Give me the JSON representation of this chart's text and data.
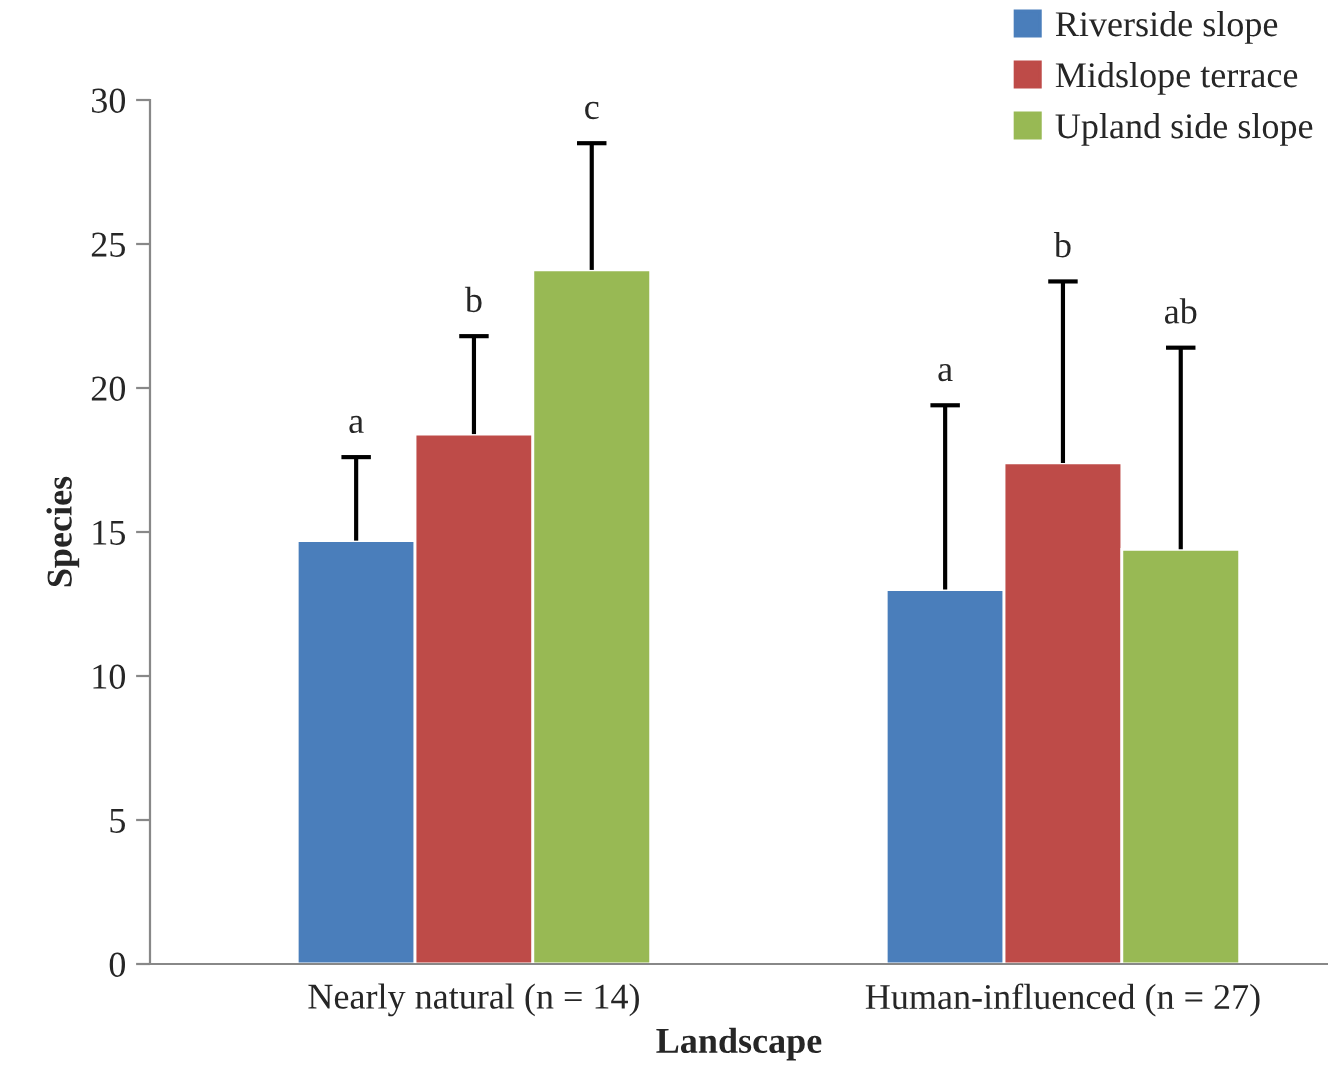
{
  "chart_data": {
    "type": "bar",
    "xlabel": "Landscape",
    "ylabel": "Species",
    "categories": [
      "Nearly natural (n = 14)",
      "Human-influenced (n = 27)"
    ],
    "series": [
      {
        "name": "Riverside slope",
        "color": "#4a7ebb",
        "values": [
          14.7,
          13.0
        ],
        "errors": [
          [
            14.7,
            17.6
          ],
          [
            13.0,
            19.4
          ]
        ]
      },
      {
        "name": "Midslope terrace",
        "color": "#be4b48",
        "values": [
          18.4,
          17.4
        ],
        "errors": [
          [
            18.4,
            21.8
          ],
          [
            17.4,
            23.7
          ]
        ]
      },
      {
        "name": "Upland side slope",
        "color": "#98b954",
        "values": [
          24.1,
          14.4
        ],
        "errors": [
          [
            24.1,
            28.5
          ],
          [
            14.4,
            21.4
          ]
        ]
      }
    ],
    "annotations": [
      "a",
      "b",
      "c",
      "a",
      "b",
      "ab"
    ],
    "ylim": [
      0,
      30
    ],
    "yticks": [
      0,
      5,
      10,
      15,
      20,
      25,
      30
    ],
    "grid": false,
    "legend": "top right"
  }
}
